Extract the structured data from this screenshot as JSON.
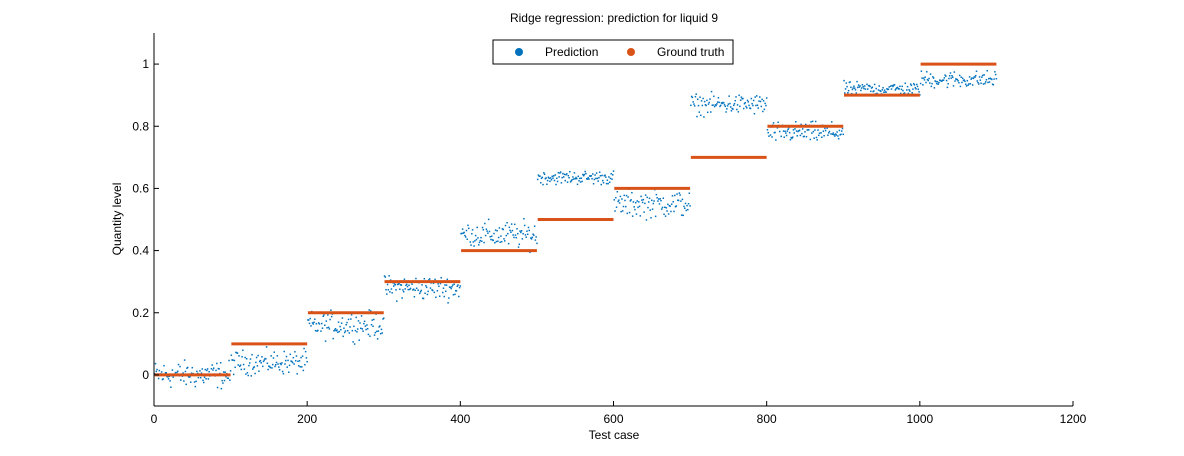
{
  "chart_data": {
    "type": "scatter",
    "title": "Ridge regression: prediction for liquid 9",
    "xlabel": "Test case",
    "ylabel": "Quantity level",
    "xlim": [
      0,
      1200
    ],
    "ylim": [
      -0.1,
      1.1
    ],
    "xticks": [
      0,
      200,
      400,
      600,
      800,
      1000,
      1200
    ],
    "yticks": [
      0,
      0.2,
      0.4,
      0.6,
      0.8,
      1
    ],
    "ytick_labels": [
      "0",
      "0.2",
      "0.4",
      "0.6",
      "0.8",
      "1"
    ],
    "grid": false,
    "legend_position": "top-center",
    "series": [
      {
        "name": "Prediction",
        "color": "#0072bd",
        "marker": "point",
        "segments": [
          {
            "x_start": 1,
            "x_end": 100,
            "mean": 0.0,
            "spread": 0.04
          },
          {
            "x_start": 101,
            "x_end": 200,
            "mean": 0.04,
            "spread": 0.035
          },
          {
            "x_start": 201,
            "x_end": 300,
            "mean": 0.16,
            "spread": 0.04
          },
          {
            "x_start": 301,
            "x_end": 400,
            "mean": 0.28,
            "spread": 0.035
          },
          {
            "x_start": 401,
            "x_end": 500,
            "mean": 0.45,
            "spread": 0.04
          },
          {
            "x_start": 501,
            "x_end": 600,
            "mean": 0.635,
            "spread": 0.02
          },
          {
            "x_start": 601,
            "x_end": 700,
            "mean": 0.55,
            "spread": 0.04
          },
          {
            "x_start": 701,
            "x_end": 800,
            "mean": 0.87,
            "spread": 0.03
          },
          {
            "x_start": 801,
            "x_end": 900,
            "mean": 0.78,
            "spread": 0.03
          },
          {
            "x_start": 901,
            "x_end": 1000,
            "mean": 0.92,
            "spread": 0.02
          },
          {
            "x_start": 1001,
            "x_end": 1100,
            "mean": 0.95,
            "spread": 0.025
          }
        ]
      },
      {
        "name": "Ground truth",
        "color": "#d95319",
        "marker": "line",
        "segments": [
          {
            "x_start": 1,
            "x_end": 100,
            "value": 0.0
          },
          {
            "x_start": 101,
            "x_end": 200,
            "value": 0.1
          },
          {
            "x_start": 201,
            "x_end": 300,
            "value": 0.2
          },
          {
            "x_start": 301,
            "x_end": 400,
            "value": 0.3
          },
          {
            "x_start": 401,
            "x_end": 500,
            "value": 0.4
          },
          {
            "x_start": 501,
            "x_end": 600,
            "value": 0.5
          },
          {
            "x_start": 601,
            "x_end": 700,
            "value": 0.6
          },
          {
            "x_start": 701,
            "x_end": 800,
            "value": 0.7
          },
          {
            "x_start": 801,
            "x_end": 900,
            "value": 0.8
          },
          {
            "x_start": 901,
            "x_end": 1000,
            "value": 0.9
          },
          {
            "x_start": 1001,
            "x_end": 1100,
            "value": 1.0
          }
        ]
      }
    ]
  }
}
